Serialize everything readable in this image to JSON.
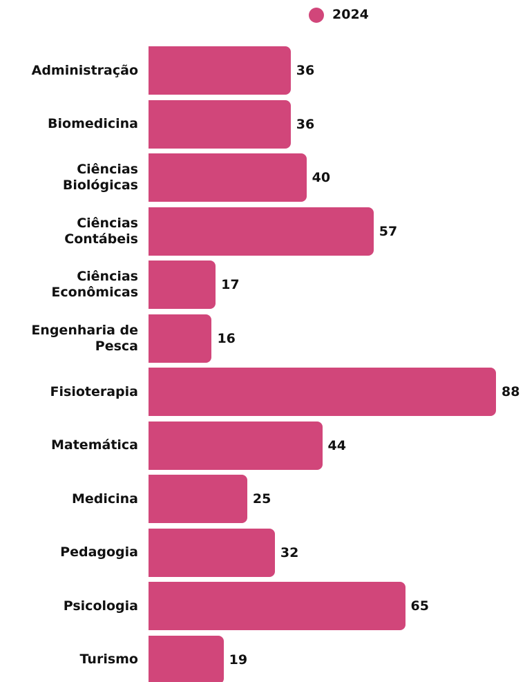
{
  "chart_data": {
    "type": "bar",
    "orientation": "horizontal",
    "categories": [
      "Administração",
      "Biomedicina",
      "Ciências Biológicas",
      "Ciências Contábeis",
      "Ciências Econômicas",
      "Engenharia de Pesca",
      "Fisioterapia",
      "Matemática",
      "Medicina",
      "Pedagogia",
      "Psicologia",
      "Turismo"
    ],
    "series": [
      {
        "name": "2024",
        "color": "#d1467a",
        "values": [
          36,
          36,
          40,
          57,
          17,
          16,
          88,
          44,
          25,
          32,
          65,
          19
        ]
      }
    ],
    "legend": "top"
  }
}
